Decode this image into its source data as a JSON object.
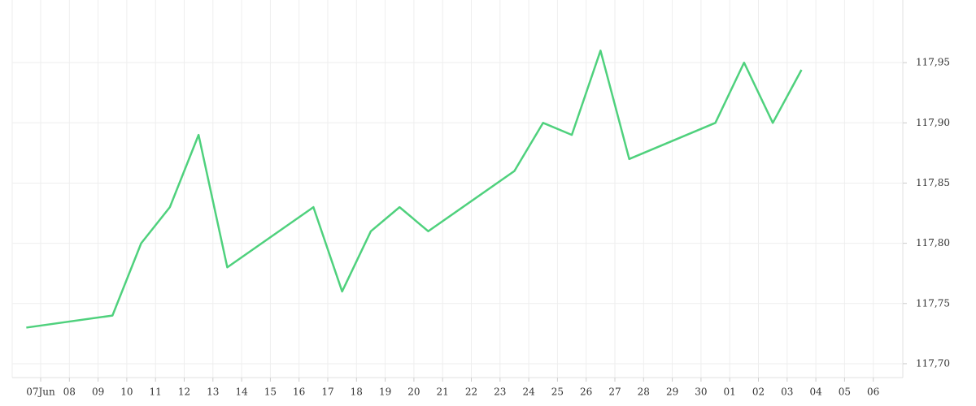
{
  "chart_data": {
    "type": "line",
    "xticks": [
      "07Jun",
      "08",
      "09",
      "10",
      "11",
      "12",
      "13",
      "14",
      "15",
      "16",
      "17",
      "18",
      "19",
      "20",
      "21",
      "22",
      "23",
      "24",
      "25",
      "26",
      "27",
      "28",
      "29",
      "30",
      "01",
      "02",
      "03",
      "04",
      "05",
      "06"
    ],
    "x": [
      "07Jun",
      "10",
      "11",
      "12",
      "13",
      "14",
      "17",
      "18",
      "19",
      "20",
      "21",
      "24",
      "25",
      "26",
      "27",
      "28",
      "01",
      "02",
      "03",
      "04"
    ],
    "series": [
      {
        "color": "#4fd17d",
        "values": [
          117.73,
          117.74,
          117.8,
          117.83,
          117.89,
          117.78,
          117.83,
          117.76,
          117.81,
          117.83,
          117.81,
          117.86,
          117.9,
          117.89,
          117.96,
          117.87,
          117.9,
          117.95,
          117.9,
          117.944
        ]
      }
    ],
    "ylim": [
      117.6885,
      118.002
    ],
    "yticks": [
      {
        "value": 117.7,
        "label": "117,70"
      },
      {
        "value": 117.75,
        "label": "117,75"
      },
      {
        "value": 117.8,
        "label": "117,80"
      },
      {
        "value": 117.85,
        "label": "117,85"
      },
      {
        "value": 117.9,
        "label": "117,90"
      },
      {
        "value": 117.95,
        "label": "117,95"
      }
    ],
    "grid": true
  }
}
